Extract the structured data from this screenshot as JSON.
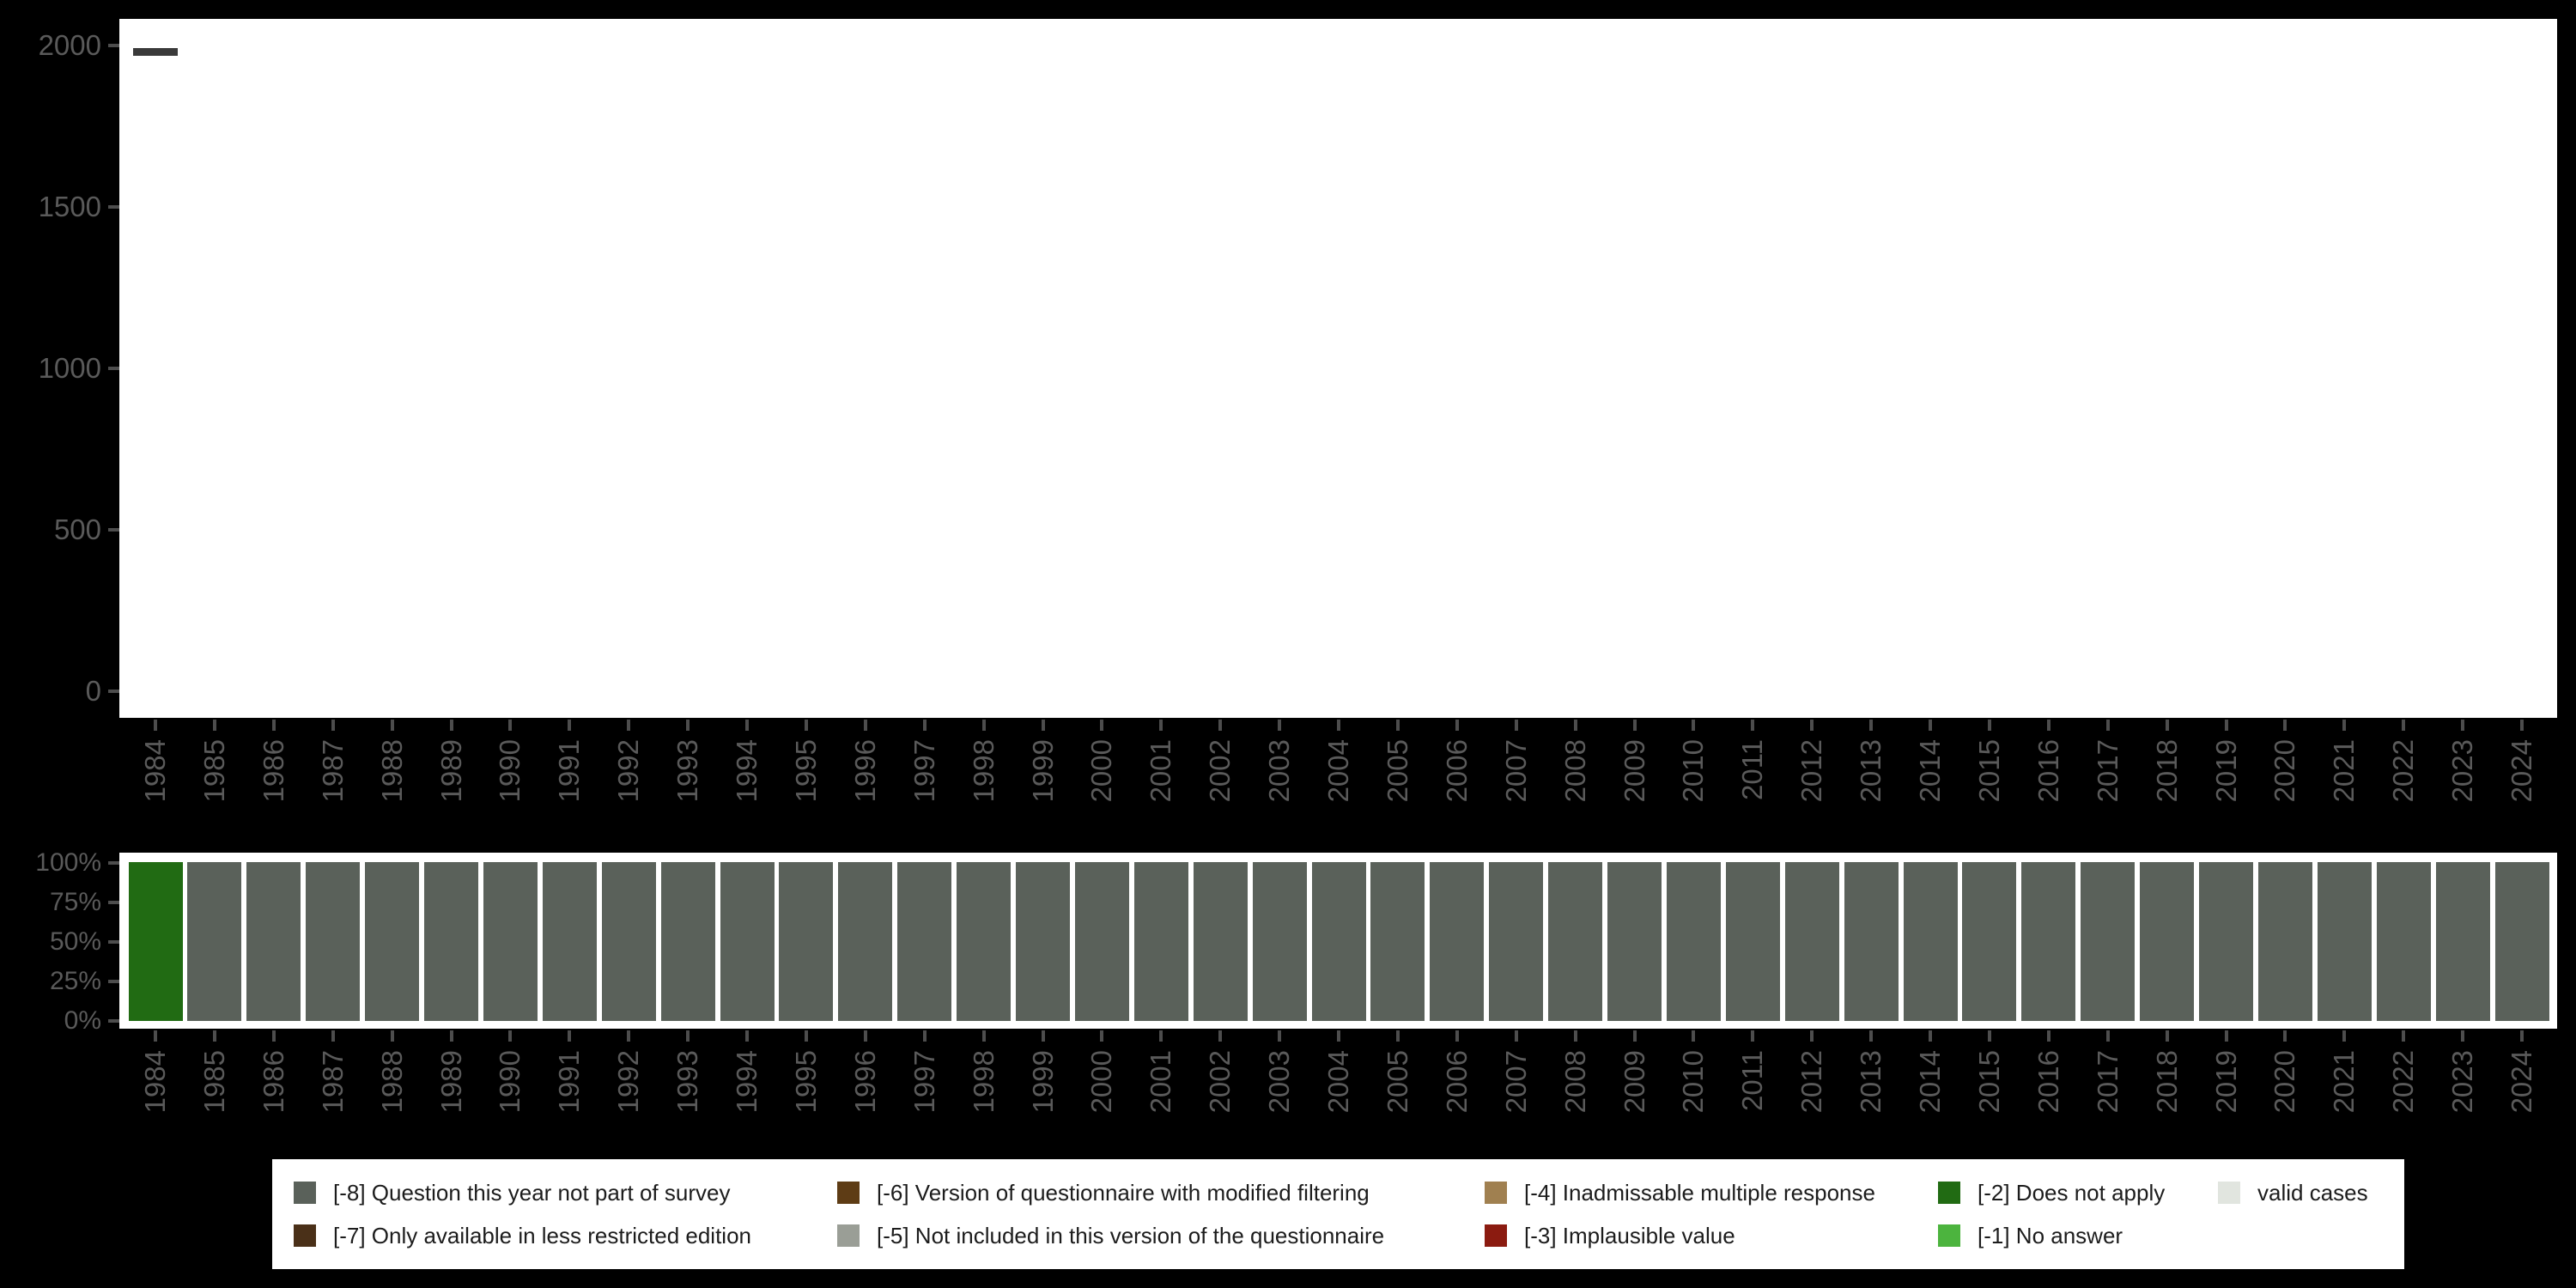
{
  "colors": {
    "background": "#000000",
    "plot_background": "#ffffff",
    "axis_text": "#5a5a5a",
    "tick_mark": "#4d4d4d",
    "case_dash": "#3a3a3a",
    "legend_background": "#ffffff",
    "legend_text": "#1c1c1c"
  },
  "code_colors": {
    "-8": "#5A615A",
    "-7": "#4A3018",
    "-6": "#5E3C15",
    "-5": "#9A9E96",
    "-4": "#A08050",
    "-3": "#8B1B10",
    "-2": "#216B13",
    "-1": "#4CB43E",
    "valid": "#E1E5DF"
  },
  "chart_data": [
    {
      "type": "bar",
      "title": "",
      "xlabel": "",
      "ylabel": "",
      "x": [
        1984,
        1985,
        1986,
        1987,
        1988,
        1989,
        1990,
        1991,
        1992,
        1993,
        1994,
        1995,
        1996,
        1997,
        1998,
        1999,
        2000,
        2001,
        2002,
        2003,
        2004,
        2005,
        2006,
        2007,
        2008,
        2009,
        2010,
        2011,
        2012,
        2013,
        2014,
        2015,
        2016,
        2017,
        2018,
        2019,
        2020,
        2021,
        2022,
        2023,
        2024
      ],
      "values": [
        1980,
        null,
        null,
        null,
        null,
        null,
        null,
        null,
        null,
        null,
        null,
        null,
        null,
        null,
        null,
        null,
        null,
        null,
        null,
        null,
        null,
        null,
        null,
        null,
        null,
        null,
        null,
        null,
        null,
        null,
        null,
        null,
        null,
        null,
        null,
        null,
        null,
        null,
        null,
        null,
        null
      ],
      "ylim": [
        0,
        2000
      ],
      "yticks": [
        "0",
        "500",
        "1000",
        "1500",
        "2000"
      ],
      "grid": false,
      "mark": "short-dash"
    },
    {
      "type": "bar",
      "stacked": true,
      "units": "percent",
      "title": "",
      "xlabel": "",
      "ylabel": "",
      "categories": [
        1984,
        1985,
        1986,
        1987,
        1988,
        1989,
        1990,
        1991,
        1992,
        1993,
        1994,
        1995,
        1996,
        1997,
        1998,
        1999,
        2000,
        2001,
        2002,
        2003,
        2004,
        2005,
        2006,
        2007,
        2008,
        2009,
        2010,
        2011,
        2012,
        2013,
        2014,
        2015,
        2016,
        2017,
        2018,
        2019,
        2020,
        2021,
        2022,
        2023,
        2024
      ],
      "segment_pct": 100,
      "codes": [
        "-2",
        "-8",
        "-8",
        "-8",
        "-8",
        "-8",
        "-8",
        "-8",
        "-8",
        "-8",
        "-8",
        "-8",
        "-8",
        "-8",
        "-8",
        "-8",
        "-8",
        "-8",
        "-8",
        "-8",
        "-8",
        "-8",
        "-8",
        "-8",
        "-8",
        "-8",
        "-8",
        "-8",
        "-8",
        "-8",
        "-8",
        "-8",
        "-8",
        "-8",
        "-8",
        "-8",
        "-8",
        "-8",
        "-8",
        "-8",
        "-8"
      ],
      "ylim": [
        0,
        100
      ],
      "yticks": [
        "0%",
        "25%",
        "50%",
        "75%",
        "100%"
      ],
      "grid": false,
      "legend_position": "bottom"
    }
  ],
  "legend": {
    "rows": [
      [
        {
          "code": "-8",
          "label": "[-8] Question this year not part of survey"
        },
        {
          "code": "-6",
          "label": "[-6] Version of questionnaire with modified filtering"
        },
        {
          "code": "-4",
          "label": "[-4] Inadmissable multiple response"
        },
        {
          "code": "-2",
          "label": "[-2] Does not apply"
        },
        {
          "code": "valid",
          "label": "valid cases"
        }
      ],
      [
        {
          "code": "-7",
          "label": "[-7] Only available in less restricted edition"
        },
        {
          "code": "-5",
          "label": "[-5] Not included in this version of the questionnaire"
        },
        {
          "code": "-3",
          "label": "[-3] Implausible value"
        },
        {
          "code": "-1",
          "label": "[-1] No answer"
        }
      ]
    ]
  }
}
